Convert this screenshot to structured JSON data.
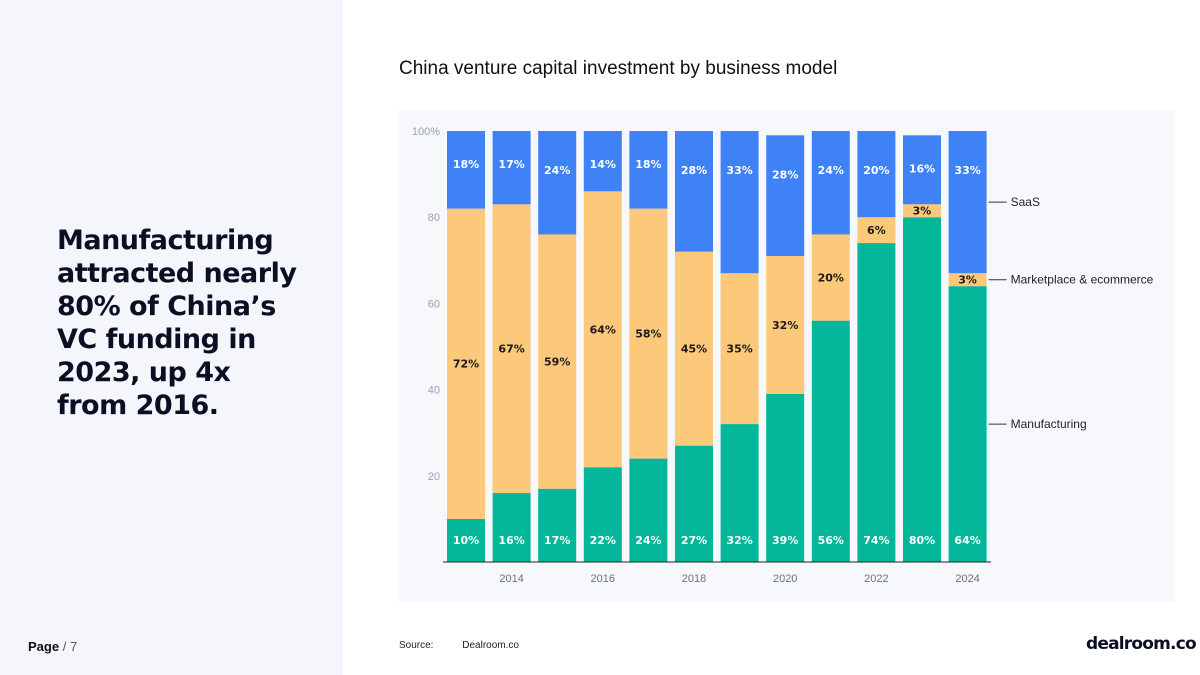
{
  "headline": "Manufacturing attracted nearly 80% of China’s VC funding in 2023, up 4x from 2016.",
  "page": {
    "label": "Page",
    "separator": "/",
    "number": "7"
  },
  "source": {
    "label": "Source:",
    "value": "Dealroom.co"
  },
  "brand": "dealroom.co",
  "colors": {
    "manufacturing": "#05b79a",
    "marketplace": "#fcc879",
    "saas": "#3f82f6",
    "plot_bg": "#f6f8fc"
  },
  "chart_data": {
    "type": "bar",
    "stacked": true,
    "title": "China venture capital investment by business model",
    "categories": [
      "2013",
      "2014",
      "2015",
      "2016",
      "2017",
      "2018",
      "2019",
      "2020",
      "2021",
      "2022",
      "2023",
      "2024"
    ],
    "x_tick_labels": [
      "2014",
      "2016",
      "2018",
      "2020",
      "2022",
      "2024"
    ],
    "ylim": [
      0,
      100
    ],
    "y_ticks": [
      "20",
      "40",
      "60",
      "80",
      "100%"
    ],
    "series": [
      {
        "name": "Manufacturing",
        "values": [
          10,
          16,
          17,
          22,
          24,
          27,
          32,
          39,
          56,
          74,
          80,
          64
        ],
        "labels": [
          "10%",
          "16%",
          "17%",
          "22%",
          "24%",
          "27%",
          "32%",
          "39%",
          "56%",
          "74%",
          "80%",
          "64%"
        ]
      },
      {
        "name": "Marketplace & ecommerce",
        "values": [
          72,
          67,
          59,
          64,
          58,
          45,
          35,
          32,
          20,
          6,
          3,
          3
        ],
        "labels": [
          "72%",
          "67%",
          "59%",
          "64%",
          "58%",
          "45%",
          "35%",
          "32%",
          "20%",
          "6%",
          "3%",
          "3%"
        ]
      },
      {
        "name": "SaaS",
        "values": [
          18,
          17,
          24,
          14,
          18,
          28,
          33,
          28,
          24,
          20,
          16,
          33
        ],
        "labels": [
          "18%",
          "17%",
          "24%",
          "14%",
          "18%",
          "28%",
          "33%",
          "28%",
          "24%",
          "20%",
          "16%",
          "33%"
        ]
      }
    ]
  }
}
